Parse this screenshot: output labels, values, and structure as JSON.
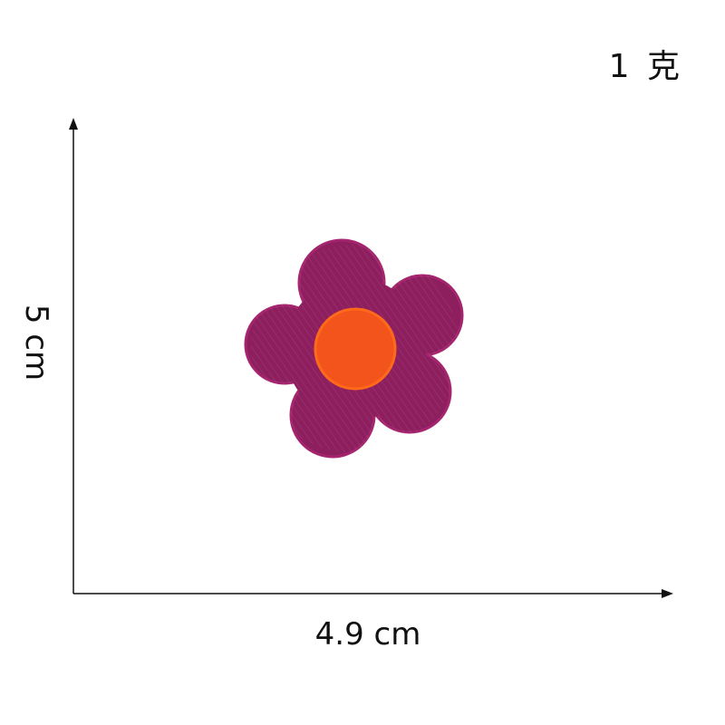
{
  "weight_label": "1 克",
  "dimensions": {
    "height_label": "5 cm",
    "width_label": "4.9 cm"
  },
  "product": {
    "icon": "flower-patch",
    "colors": {
      "petals": "#8e1f5f",
      "petal_edge": "#a4246e",
      "center": "#f2541b",
      "center_edge": "#ff6a1a"
    }
  }
}
